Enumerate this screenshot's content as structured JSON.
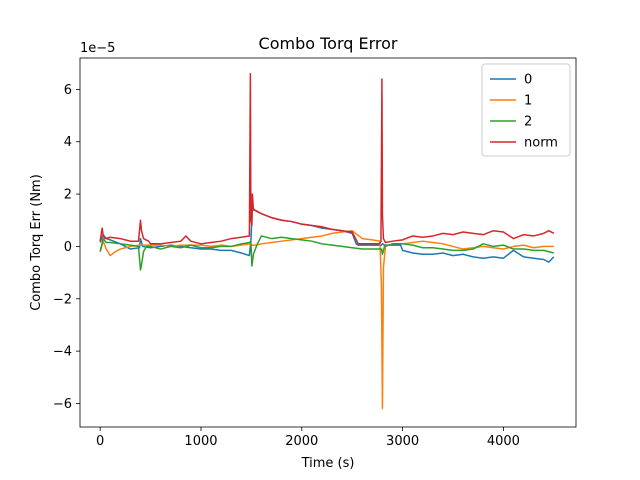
{
  "chart_data": {
    "type": "line",
    "title": "Combo Torq Error",
    "xlabel": "Time (s)",
    "ylabel": "Combo Torq Err (Nm)",
    "y_offset_label": "1e−5",
    "xlim": [
      -200,
      4720
    ],
    "ylim": [
      -6.9,
      7.2
    ],
    "xticks": [
      0,
      1000,
      2000,
      3000,
      4000
    ],
    "xtick_labels": [
      "0",
      "1000",
      "2000",
      "3000",
      "4000"
    ],
    "yticks": [
      -6,
      -4,
      -2,
      0,
      2,
      4,
      6
    ],
    "ytick_labels": [
      "−6",
      "−4",
      "−2",
      "0",
      "2",
      "4",
      "6"
    ],
    "grid": false,
    "legend_position": "upper right",
    "series": [
      {
        "name": "0",
        "color": "#1f77b4",
        "x": [
          0,
          30,
          60,
          100,
          200,
          300,
          390,
          400,
          420,
          500,
          600,
          700,
          800,
          900,
          1000,
          1100,
          1200,
          1300,
          1400,
          1480,
          1495,
          1510,
          1530,
          1600,
          1700,
          1800,
          1900,
          2000,
          2100,
          2200,
          2300,
          2400,
          2500,
          2540,
          2560,
          2600,
          2700,
          2790,
          2800,
          2820,
          2900,
          2980,
          3000,
          3100,
          3200,
          3300,
          3400,
          3500,
          3600,
          3700,
          3800,
          3900,
          4000,
          4100,
          4200,
          4300,
          4400,
          4450,
          4500
        ],
        "y": [
          0.15,
          0.45,
          0.3,
          0.25,
          0.1,
          -0.1,
          -0.05,
          0.3,
          0.0,
          -0.05,
          0.0,
          0.05,
          0.0,
          -0.05,
          -0.1,
          -0.1,
          -0.15,
          -0.15,
          -0.25,
          -0.35,
          0.2,
          1.5,
          1.4,
          1.25,
          1.1,
          1.0,
          0.95,
          0.85,
          0.8,
          0.7,
          0.65,
          0.6,
          0.5,
          0.1,
          0.05,
          0.05,
          0.05,
          0.05,
          0.1,
          0.05,
          0.05,
          0.05,
          -0.15,
          -0.25,
          -0.3,
          -0.3,
          -0.25,
          -0.35,
          -0.3,
          -0.4,
          -0.45,
          -0.4,
          -0.45,
          -0.15,
          -0.4,
          -0.45,
          -0.5,
          -0.6,
          -0.4
        ]
      },
      {
        "name": "1",
        "color": "#ff7f0e",
        "x": [
          0,
          30,
          60,
          100,
          150,
          200,
          300,
          400,
          500,
          600,
          700,
          800,
          900,
          1000,
          1100,
          1200,
          1300,
          1400,
          1480,
          1495,
          1510,
          1550,
          1600,
          1700,
          1800,
          1900,
          2000,
          2100,
          2200,
          2300,
          2400,
          2500,
          2600,
          2700,
          2775,
          2790,
          2800,
          2810,
          2830,
          2900,
          3000,
          3100,
          3200,
          3300,
          3400,
          3500,
          3600,
          3700,
          3800,
          3900,
          4000,
          4100,
          4200,
          4300,
          4400,
          4500
        ],
        "y": [
          -0.2,
          0.2,
          -0.1,
          -0.35,
          -0.2,
          -0.1,
          0.0,
          0.05,
          0.05,
          0.05,
          0.0,
          0.05,
          0.05,
          0.05,
          0.0,
          0.05,
          0.0,
          0.05,
          0.1,
          0.05,
          0.05,
          0.05,
          0.1,
          0.15,
          0.2,
          0.25,
          0.3,
          0.35,
          0.4,
          0.5,
          0.55,
          0.6,
          0.3,
          0.25,
          0.2,
          -1.5,
          -6.2,
          -0.8,
          0.0,
          0.1,
          0.1,
          0.15,
          0.2,
          0.15,
          0.1,
          0.0,
          -0.1,
          -0.05,
          0.0,
          -0.05,
          -0.1,
          0.0,
          0.05,
          -0.05,
          0.0,
          0.0
        ]
      },
      {
        "name": "2",
        "color": "#2ca02c",
        "x": [
          0,
          30,
          60,
          100,
          200,
          300,
          380,
          400,
          410,
          430,
          460,
          500,
          600,
          700,
          800,
          900,
          1000,
          1100,
          1200,
          1300,
          1400,
          1480,
          1495,
          1505,
          1520,
          1560,
          1600,
          1700,
          1800,
          1900,
          2000,
          2100,
          2200,
          2300,
          2400,
          2500,
          2600,
          2700,
          2790,
          2800,
          2820,
          2900,
          3000,
          3100,
          3200,
          3300,
          3400,
          3500,
          3600,
          3700,
          3800,
          3900,
          4000,
          4100,
          4200,
          4300,
          4400,
          4500
        ],
        "y": [
          -0.2,
          0.3,
          0.15,
          0.15,
          0.1,
          0.05,
          0.0,
          -0.9,
          -0.7,
          -0.2,
          0.0,
          0.0,
          -0.1,
          0.0,
          -0.05,
          0.05,
          -0.05,
          -0.05,
          0.0,
          0.0,
          0.1,
          0.15,
          0.2,
          -0.75,
          -0.3,
          0.1,
          0.4,
          0.3,
          0.35,
          0.3,
          0.25,
          0.2,
          0.1,
          0.05,
          0.0,
          -0.05,
          -0.1,
          -0.1,
          -0.1,
          -0.3,
          0.0,
          0.1,
          0.1,
          0.05,
          -0.05,
          -0.05,
          -0.1,
          -0.15,
          -0.15,
          -0.1,
          0.1,
          0.0,
          0.05,
          -0.1,
          -0.1,
          -0.15,
          -0.15,
          -0.25
        ]
      },
      {
        "name": "norm",
        "color": "#d62728",
        "x": [
          0,
          20,
          30,
          50,
          100,
          200,
          300,
          380,
          400,
          410,
          430,
          480,
          500,
          600,
          700,
          800,
          850,
          900,
          1000,
          1100,
          1200,
          1300,
          1400,
          1480,
          1490,
          1495,
          1500,
          1505,
          1510,
          1520,
          1550,
          1600,
          1700,
          1800,
          1900,
          2000,
          2100,
          2200,
          2300,
          2400,
          2500,
          2540,
          2560,
          2600,
          2700,
          2770,
          2785,
          2795,
          2800,
          2810,
          2830,
          2900,
          3000,
          3100,
          3200,
          3300,
          3400,
          3500,
          3600,
          3700,
          3800,
          3900,
          4000,
          4100,
          4200,
          4300,
          4400,
          4450,
          4500
        ],
        "y": [
          0.2,
          0.7,
          0.4,
          0.3,
          0.35,
          0.3,
          0.2,
          0.2,
          1.0,
          0.6,
          0.3,
          0.2,
          0.1,
          0.1,
          0.15,
          0.2,
          0.4,
          0.2,
          0.1,
          0.15,
          0.2,
          0.3,
          0.35,
          0.4,
          6.6,
          1.0,
          0.9,
          0.8,
          2.0,
          1.4,
          1.35,
          1.25,
          1.1,
          1.0,
          0.95,
          0.85,
          0.8,
          0.75,
          0.65,
          0.6,
          0.55,
          0.25,
          0.1,
          0.1,
          0.1,
          0.1,
          0.2,
          6.4,
          1.2,
          0.3,
          0.15,
          0.2,
          0.25,
          0.4,
          0.35,
          0.4,
          0.5,
          0.45,
          0.55,
          0.5,
          0.45,
          0.6,
          0.55,
          0.3,
          0.45,
          0.4,
          0.5,
          0.6,
          0.5
        ]
      }
    ]
  }
}
